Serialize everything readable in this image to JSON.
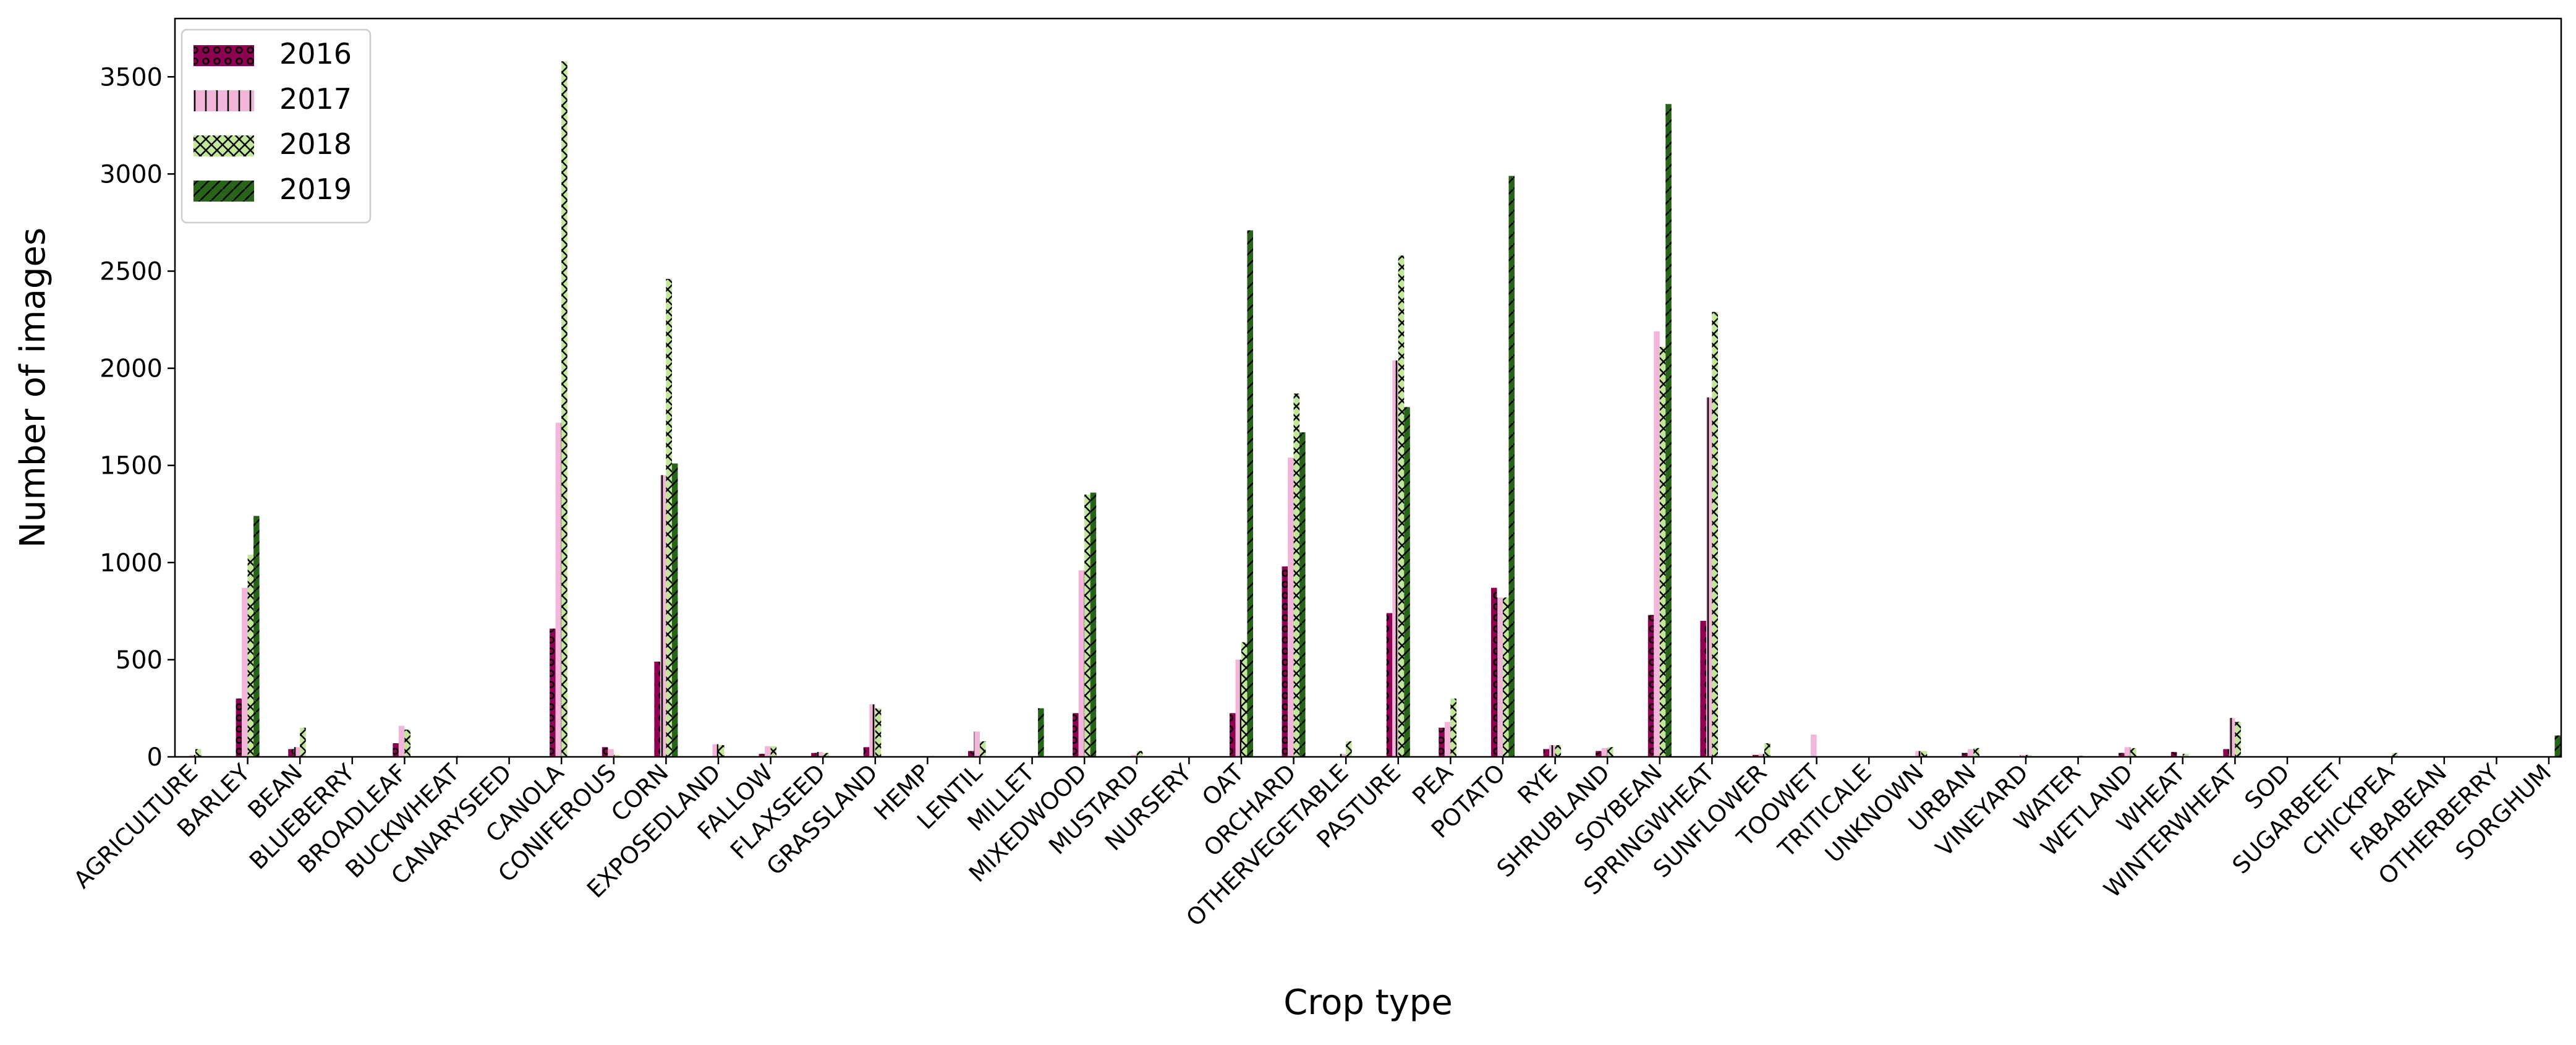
{
  "chart_data": {
    "type": "bar",
    "title": "",
    "xlabel": "Crop type",
    "ylabel": "Number of images",
    "ylim": [
      0,
      3800
    ],
    "yticks": [
      0,
      500,
      1000,
      1500,
      2000,
      2500,
      3000,
      3500
    ],
    "grid": false,
    "legend_position": "top-left",
    "categories": [
      "AGRICULTURE",
      "BARLEY",
      "BEAN",
      "BLUEBERRY",
      "BROADLEAF",
      "BUCKWHEAT",
      "CANARYSEED",
      "CANOLA",
      "CONIFEROUS",
      "CORN",
      "EXPOSEDLAND",
      "FALLOW",
      "FLAXSEED",
      "GRASSLAND",
      "HEMP",
      "LENTIL",
      "MILLET",
      "MIXEDWOOD",
      "MUSTARD",
      "NURSERY",
      "OAT",
      "ORCHARD",
      "OTHERVEGETABLE",
      "PASTURE",
      "PEA",
      "POTATO",
      "RYE",
      "SHRUBLAND",
      "SOYBEAN",
      "SPRINGWHEAT",
      "SUNFLOWER",
      "TOOWET",
      "TRITICALE",
      "UNKNOWN",
      "URBAN",
      "VINEYARD",
      "WATER",
      "WETLAND",
      "WHEAT",
      "WINTERWHEAT",
      "SOD",
      "SUGARBEET",
      "CHICKPEA",
      "FABABEAN",
      "OTHERBERRY",
      "SORGHUM"
    ],
    "series": [
      {
        "name": "2016",
        "color": "#8e0152",
        "hatch": "o",
        "values": [
          0,
          300,
          40,
          0,
          70,
          0,
          0,
          660,
          50,
          490,
          0,
          15,
          20,
          50,
          0,
          30,
          0,
          225,
          0,
          0,
          225,
          980,
          0,
          740,
          150,
          870,
          40,
          30,
          730,
          700,
          10,
          0,
          0,
          0,
          20,
          0,
          0,
          20,
          25,
          40,
          0,
          0,
          0,
          0,
          0,
          0
        ]
      },
      {
        "name": "2017",
        "color": "#f1b6da",
        "hatch": "|",
        "values": [
          10,
          870,
          50,
          0,
          160,
          0,
          0,
          1720,
          40,
          1450,
          65,
          55,
          25,
          270,
          5,
          130,
          0,
          960,
          10,
          0,
          500,
          1540,
          15,
          2040,
          180,
          820,
          60,
          45,
          2190,
          1850,
          15,
          115,
          0,
          30,
          40,
          10,
          0,
          50,
          0,
          200,
          0,
          0,
          0,
          0,
          0,
          0
        ]
      },
      {
        "name": "2018",
        "color": "#c2e69a",
        "hatch": "x",
        "values": [
          40,
          1040,
          150,
          0,
          140,
          5,
          0,
          3580,
          10,
          2460,
          60,
          55,
          20,
          250,
          5,
          80,
          0,
          1350,
          30,
          0,
          590,
          1870,
          80,
          2580,
          300,
          820,
          60,
          50,
          2110,
          2290,
          70,
          0,
          0,
          30,
          45,
          10,
          5,
          45,
          15,
          180,
          0,
          0,
          20,
          0,
          0,
          0
        ]
      },
      {
        "name": "2019",
        "color": "#276419",
        "hatch": "/",
        "values": [
          0,
          1240,
          0,
          0,
          0,
          0,
          0,
          0,
          0,
          1510,
          0,
          0,
          0,
          0,
          0,
          0,
          250,
          1360,
          0,
          0,
          2710,
          1670,
          0,
          1800,
          0,
          2990,
          0,
          0,
          3360,
          0,
          0,
          0,
          0,
          0,
          0,
          0,
          0,
          0,
          0,
          0,
          0,
          0,
          0,
          0,
          0,
          110
        ]
      }
    ]
  }
}
